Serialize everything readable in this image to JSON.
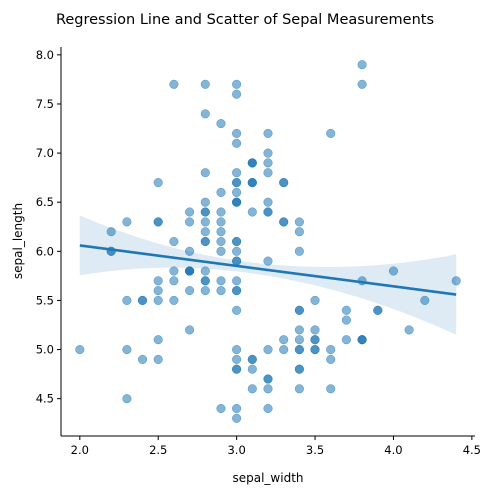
{
  "chart_data": {
    "type": "scatter",
    "title": "Regression Line and Scatter of Sepal Measurements",
    "xlabel": "sepal_width",
    "ylabel": "sepal_length",
    "xlim": [
      1.88,
      4.52
    ],
    "ylim": [
      4.12,
      8.08
    ],
    "xticks": [
      "2.0",
      "2.5",
      "3.0",
      "3.5",
      "4.0",
      "4.5"
    ],
    "yticks": [
      "4.5",
      "5.0",
      "5.5",
      "6.0",
      "6.5",
      "7.0",
      "7.5",
      "8.0"
    ],
    "grid": false,
    "color": "#1f77b4",
    "regression": {
      "x": [
        2.0,
        4.4
      ],
      "y": [
        6.06,
        5.56
      ],
      "ci_lower": [
        5.77,
        5.16
      ],
      "ci_upper": [
        6.38,
        5.98
      ]
    },
    "points": [
      [
        3.5,
        5.1
      ],
      [
        3.0,
        4.9
      ],
      [
        3.2,
        4.7
      ],
      [
        3.1,
        4.6
      ],
      [
        3.6,
        5.0
      ],
      [
        3.9,
        5.4
      ],
      [
        3.4,
        4.6
      ],
      [
        3.4,
        5.0
      ],
      [
        2.9,
        4.4
      ],
      [
        3.1,
        4.9
      ],
      [
        3.7,
        5.4
      ],
      [
        3.4,
        4.8
      ],
      [
        3.0,
        4.8
      ],
      [
        3.0,
        4.3
      ],
      [
        4.0,
        5.8
      ],
      [
        4.4,
        5.7
      ],
      [
        3.9,
        5.4
      ],
      [
        3.5,
        5.1
      ],
      [
        3.8,
        5.7
      ],
      [
        3.8,
        5.1
      ],
      [
        3.4,
        5.4
      ],
      [
        3.7,
        5.1
      ],
      [
        3.6,
        4.6
      ],
      [
        3.3,
        5.1
      ],
      [
        3.4,
        4.8
      ],
      [
        3.0,
        5.0
      ],
      [
        3.4,
        5.0
      ],
      [
        3.5,
        5.2
      ],
      [
        3.4,
        5.2
      ],
      [
        3.2,
        4.7
      ],
      [
        3.1,
        4.8
      ],
      [
        3.4,
        5.4
      ],
      [
        4.1,
        5.2
      ],
      [
        4.2,
        5.5
      ],
      [
        3.1,
        4.9
      ],
      [
        3.2,
        5.0
      ],
      [
        3.5,
        5.5
      ],
      [
        3.6,
        4.9
      ],
      [
        3.0,
        4.4
      ],
      [
        3.4,
        5.1
      ],
      [
        3.5,
        5.0
      ],
      [
        2.3,
        4.5
      ],
      [
        3.2,
        4.4
      ],
      [
        3.5,
        5.0
      ],
      [
        3.8,
        5.1
      ],
      [
        3.0,
        4.8
      ],
      [
        3.8,
        5.1
      ],
      [
        3.2,
        4.6
      ],
      [
        3.7,
        5.3
      ],
      [
        3.3,
        5.0
      ],
      [
        3.2,
        7.0
      ],
      [
        3.2,
        6.4
      ],
      [
        3.1,
        6.9
      ],
      [
        2.3,
        5.5
      ],
      [
        2.8,
        6.5
      ],
      [
        2.8,
        5.7
      ],
      [
        3.3,
        6.3
      ],
      [
        2.4,
        4.9
      ],
      [
        2.9,
        6.6
      ],
      [
        2.7,
        5.2
      ],
      [
        2.0,
        5.0
      ],
      [
        3.0,
        5.9
      ],
      [
        2.2,
        6.0
      ],
      [
        2.9,
        6.1
      ],
      [
        2.9,
        5.6
      ],
      [
        3.1,
        6.7
      ],
      [
        3.0,
        5.6
      ],
      [
        2.7,
        5.8
      ],
      [
        2.2,
        6.2
      ],
      [
        2.5,
        5.6
      ],
      [
        3.2,
        5.9
      ],
      [
        2.8,
        6.1
      ],
      [
        2.5,
        6.3
      ],
      [
        2.8,
        6.1
      ],
      [
        2.9,
        6.4
      ],
      [
        3.0,
        6.6
      ],
      [
        2.8,
        6.8
      ],
      [
        3.0,
        6.7
      ],
      [
        2.9,
        6.0
      ],
      [
        2.6,
        5.7
      ],
      [
        2.4,
        5.5
      ],
      [
        2.4,
        5.5
      ],
      [
        2.7,
        5.8
      ],
      [
        2.7,
        6.0
      ],
      [
        3.0,
        5.4
      ],
      [
        3.4,
        6.0
      ],
      [
        3.1,
        6.7
      ],
      [
        2.3,
        6.3
      ],
      [
        3.0,
        5.6
      ],
      [
        2.5,
        5.5
      ],
      [
        2.6,
        5.5
      ],
      [
        3.0,
        6.1
      ],
      [
        2.6,
        5.8
      ],
      [
        2.3,
        5.0
      ],
      [
        2.7,
        5.6
      ],
      [
        3.0,
        5.7
      ],
      [
        2.9,
        5.7
      ],
      [
        2.9,
        6.2
      ],
      [
        2.5,
        5.1
      ],
      [
        2.8,
        5.7
      ],
      [
        3.3,
        6.3
      ],
      [
        2.7,
        5.8
      ],
      [
        3.0,
        7.1
      ],
      [
        2.9,
        6.3
      ],
      [
        3.0,
        6.5
      ],
      [
        3.0,
        7.6
      ],
      [
        2.5,
        4.9
      ],
      [
        2.9,
        7.3
      ],
      [
        2.5,
        6.7
      ],
      [
        3.6,
        7.2
      ],
      [
        3.2,
        6.5
      ],
      [
        2.7,
        6.4
      ],
      [
        3.0,
        6.8
      ],
      [
        2.5,
        5.7
      ],
      [
        2.8,
        5.8
      ],
      [
        3.2,
        6.4
      ],
      [
        3.0,
        6.5
      ],
      [
        3.8,
        7.7
      ],
      [
        2.6,
        7.7
      ],
      [
        2.2,
        6.0
      ],
      [
        3.2,
        6.9
      ],
      [
        2.8,
        5.6
      ],
      [
        2.8,
        7.7
      ],
      [
        2.7,
        6.3
      ],
      [
        3.3,
        6.7
      ],
      [
        3.2,
        7.2
      ],
      [
        2.8,
        6.2
      ],
      [
        3.0,
        6.1
      ],
      [
        2.8,
        6.4
      ],
      [
        3.0,
        7.2
      ],
      [
        2.8,
        7.4
      ],
      [
        3.8,
        7.9
      ],
      [
        2.8,
        6.4
      ],
      [
        2.8,
        6.3
      ],
      [
        2.6,
        6.1
      ],
      [
        3.0,
        7.7
      ],
      [
        3.4,
        6.3
      ],
      [
        3.1,
        6.4
      ],
      [
        3.0,
        6.0
      ],
      [
        3.1,
        6.9
      ],
      [
        3.1,
        6.7
      ],
      [
        3.1,
        6.9
      ],
      [
        2.7,
        5.8
      ],
      [
        3.2,
        6.8
      ],
      [
        3.3,
        6.7
      ],
      [
        3.0,
        6.7
      ],
      [
        2.5,
        6.3
      ],
      [
        3.0,
        6.5
      ],
      [
        3.4,
        6.2
      ],
      [
        3.0,
        5.9
      ]
    ]
  }
}
